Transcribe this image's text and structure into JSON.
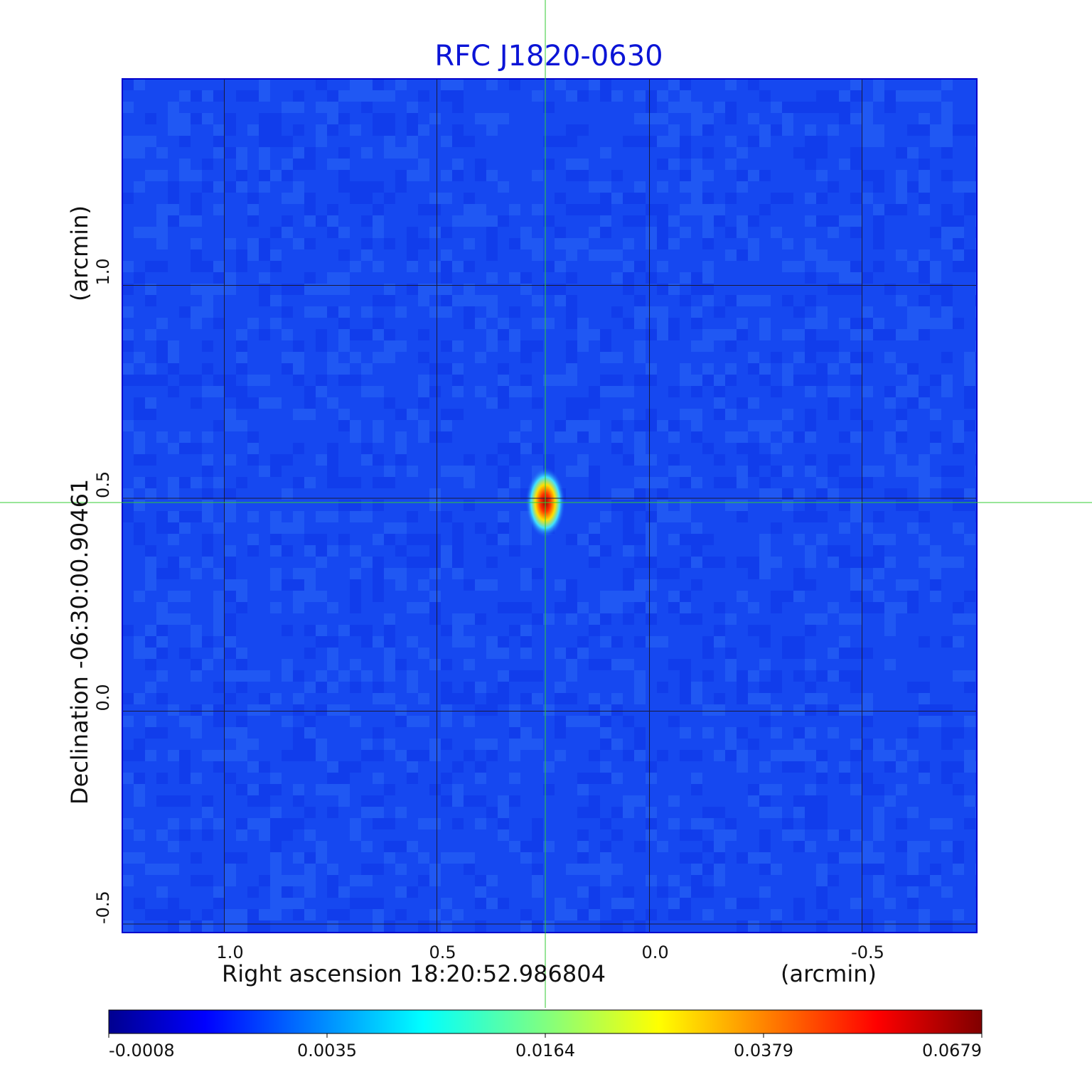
{
  "chart_data": {
    "type": "heatmap",
    "title": "RFC J1820-0630",
    "xlabel": "Right ascension  18:20:52.986804",
    "xunit": "(arcmin)",
    "ylabel": "Declination  -06:30:00.90461",
    "yunit": "(arcmin)",
    "x_ticks": [
      "1.0",
      "0.5",
      "0.0",
      "-0.5"
    ],
    "y_ticks": [
      "1.0",
      "0.5",
      "0.0",
      "-0.5"
    ],
    "x_tick_values": [
      1.0,
      0.5,
      0.0,
      -0.5
    ],
    "y_tick_values": [
      1.0,
      0.5,
      0.0,
      -0.5
    ],
    "xlim": [
      1.24,
      -0.77
    ],
    "ylim": [
      -0.52,
      1.485
    ],
    "grid": true,
    "crosshair": {
      "x": 0.245,
      "y": 0.49,
      "color": "#33cc33"
    },
    "source_peak": {
      "x": 0.245,
      "y": 0.49,
      "value": 0.0679
    },
    "colorbar": {
      "colormap": "jet",
      "tick_labels": [
        "-0.0008",
        "0.0035",
        "0.0164",
        "0.0379",
        "0.0679"
      ],
      "min": -0.0008,
      "max": 0.0679
    },
    "background_color": "#1648f0"
  }
}
